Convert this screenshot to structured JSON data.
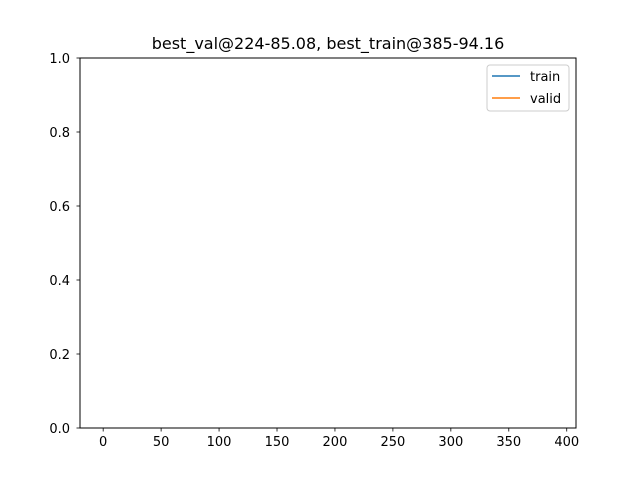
{
  "chart_data": {
    "type": "line",
    "title": "best_val@224-85.08, best_train@385-94.16",
    "xlabel": "",
    "ylabel": "",
    "xlim": [
      -20,
      408
    ],
    "ylim": [
      0,
      1
    ],
    "x_ticks": [
      0,
      50,
      100,
      150,
      200,
      250,
      300,
      350,
      400
    ],
    "y_ticks": [
      0.0,
      0.2,
      0.4,
      0.6,
      0.8,
      1.0
    ],
    "x_tick_labels": [
      "0",
      "50",
      "100",
      "150",
      "200",
      "250",
      "300",
      "350",
      "400"
    ],
    "y_tick_labels": [
      "0.0",
      "0.2",
      "0.4",
      "0.6",
      "0.8",
      "1.0"
    ],
    "grid": false,
    "legend_position": "top-right",
    "series": [
      {
        "name": "train",
        "color": "#1f77b4",
        "x": [],
        "y": []
      },
      {
        "name": "valid",
        "color": "#ff7f0e",
        "x": [],
        "y": []
      }
    ]
  }
}
